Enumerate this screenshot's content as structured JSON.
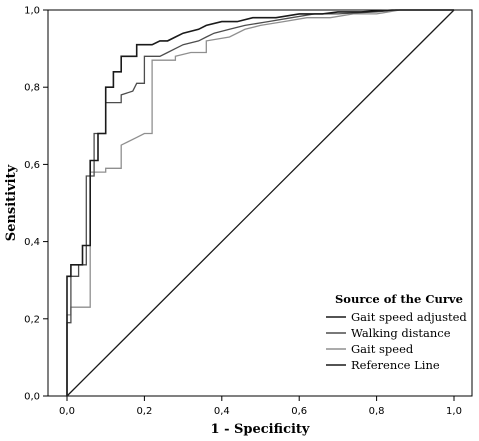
{
  "chart_data": {
    "type": "line",
    "title": "",
    "xlabel": "1 - Specificity",
    "ylabel": "Sensitivity",
    "xlim": [
      0,
      1
    ],
    "ylim": [
      0,
      1
    ],
    "xticks": [
      "0,0",
      "0,2",
      "0,4",
      "0,6",
      "0,8",
      "1,0"
    ],
    "yticks": [
      "0,0",
      "0,2",
      "0,4",
      "0,6",
      "0,8",
      "1,0"
    ],
    "grid": false,
    "legend": {
      "title": "Source of the Curve",
      "placement": "bottom-right"
    },
    "series": [
      {
        "name": "Gait speed adjusted",
        "color": "#1a1a1a",
        "x": [
          0,
          0,
          0.01,
          0.01,
          0.04,
          0.04,
          0.06,
          0.06,
          0.08,
          0.08,
          0.1,
          0.1,
          0.12,
          0.12,
          0.14,
          0.14,
          0.18,
          0.18,
          0.22,
          0.24,
          0.26,
          0.28,
          0.3,
          0.34,
          0.36,
          0.4,
          0.44,
          0.48,
          0.54,
          0.6,
          0.66,
          0.7,
          0.76,
          0.84,
          1
        ],
        "y": [
          0,
          0.31,
          0.31,
          0.34,
          0.34,
          0.39,
          0.39,
          0.61,
          0.61,
          0.68,
          0.68,
          0.8,
          0.8,
          0.84,
          0.84,
          0.88,
          0.88,
          0.91,
          0.91,
          0.92,
          0.92,
          0.93,
          0.94,
          0.95,
          0.96,
          0.97,
          0.97,
          0.98,
          0.98,
          0.99,
          0.99,
          0.995,
          0.995,
          1,
          1
        ]
      },
      {
        "name": "Walking distance",
        "color": "#4d4d4d",
        "x": [
          0,
          0,
          0.01,
          0.01,
          0.03,
          0.03,
          0.05,
          0.05,
          0.07,
          0.07,
          0.1,
          0.1,
          0.14,
          0.14,
          0.17,
          0.18,
          0.2,
          0.2,
          0.24,
          0.26,
          0.28,
          0.3,
          0.34,
          0.36,
          0.38,
          0.42,
          0.46,
          0.52,
          0.58,
          0.64,
          0.7,
          0.8,
          0.85,
          1
        ],
        "y": [
          0,
          0.19,
          0.19,
          0.31,
          0.31,
          0.34,
          0.34,
          0.57,
          0.57,
          0.68,
          0.68,
          0.76,
          0.76,
          0.78,
          0.79,
          0.81,
          0.81,
          0.88,
          0.88,
          0.89,
          0.9,
          0.91,
          0.92,
          0.93,
          0.94,
          0.95,
          0.96,
          0.97,
          0.98,
          0.99,
          0.99,
          0.995,
          1,
          1
        ]
      },
      {
        "name": "Gait speed",
        "color": "#8f8f8f",
        "x": [
          0,
          0,
          0.01,
          0.01,
          0.06,
          0.06,
          0.1,
          0.1,
          0.14,
          0.14,
          0.18,
          0.2,
          0.22,
          0.22,
          0.28,
          0.28,
          0.32,
          0.36,
          0.36,
          0.42,
          0.46,
          0.5,
          0.56,
          0.62,
          0.68,
          0.74,
          0.8,
          0.86,
          1
        ],
        "y": [
          0,
          0.21,
          0.21,
          0.23,
          0.23,
          0.58,
          0.58,
          0.59,
          0.59,
          0.65,
          0.67,
          0.68,
          0.68,
          0.87,
          0.87,
          0.88,
          0.89,
          0.89,
          0.92,
          0.93,
          0.95,
          0.96,
          0.97,
          0.98,
          0.98,
          0.99,
          0.99,
          1,
          1
        ]
      },
      {
        "name": "Reference Line",
        "color": "#1a1a1a",
        "x": [
          0,
          1
        ],
        "y": [
          0,
          1
        ]
      }
    ]
  }
}
